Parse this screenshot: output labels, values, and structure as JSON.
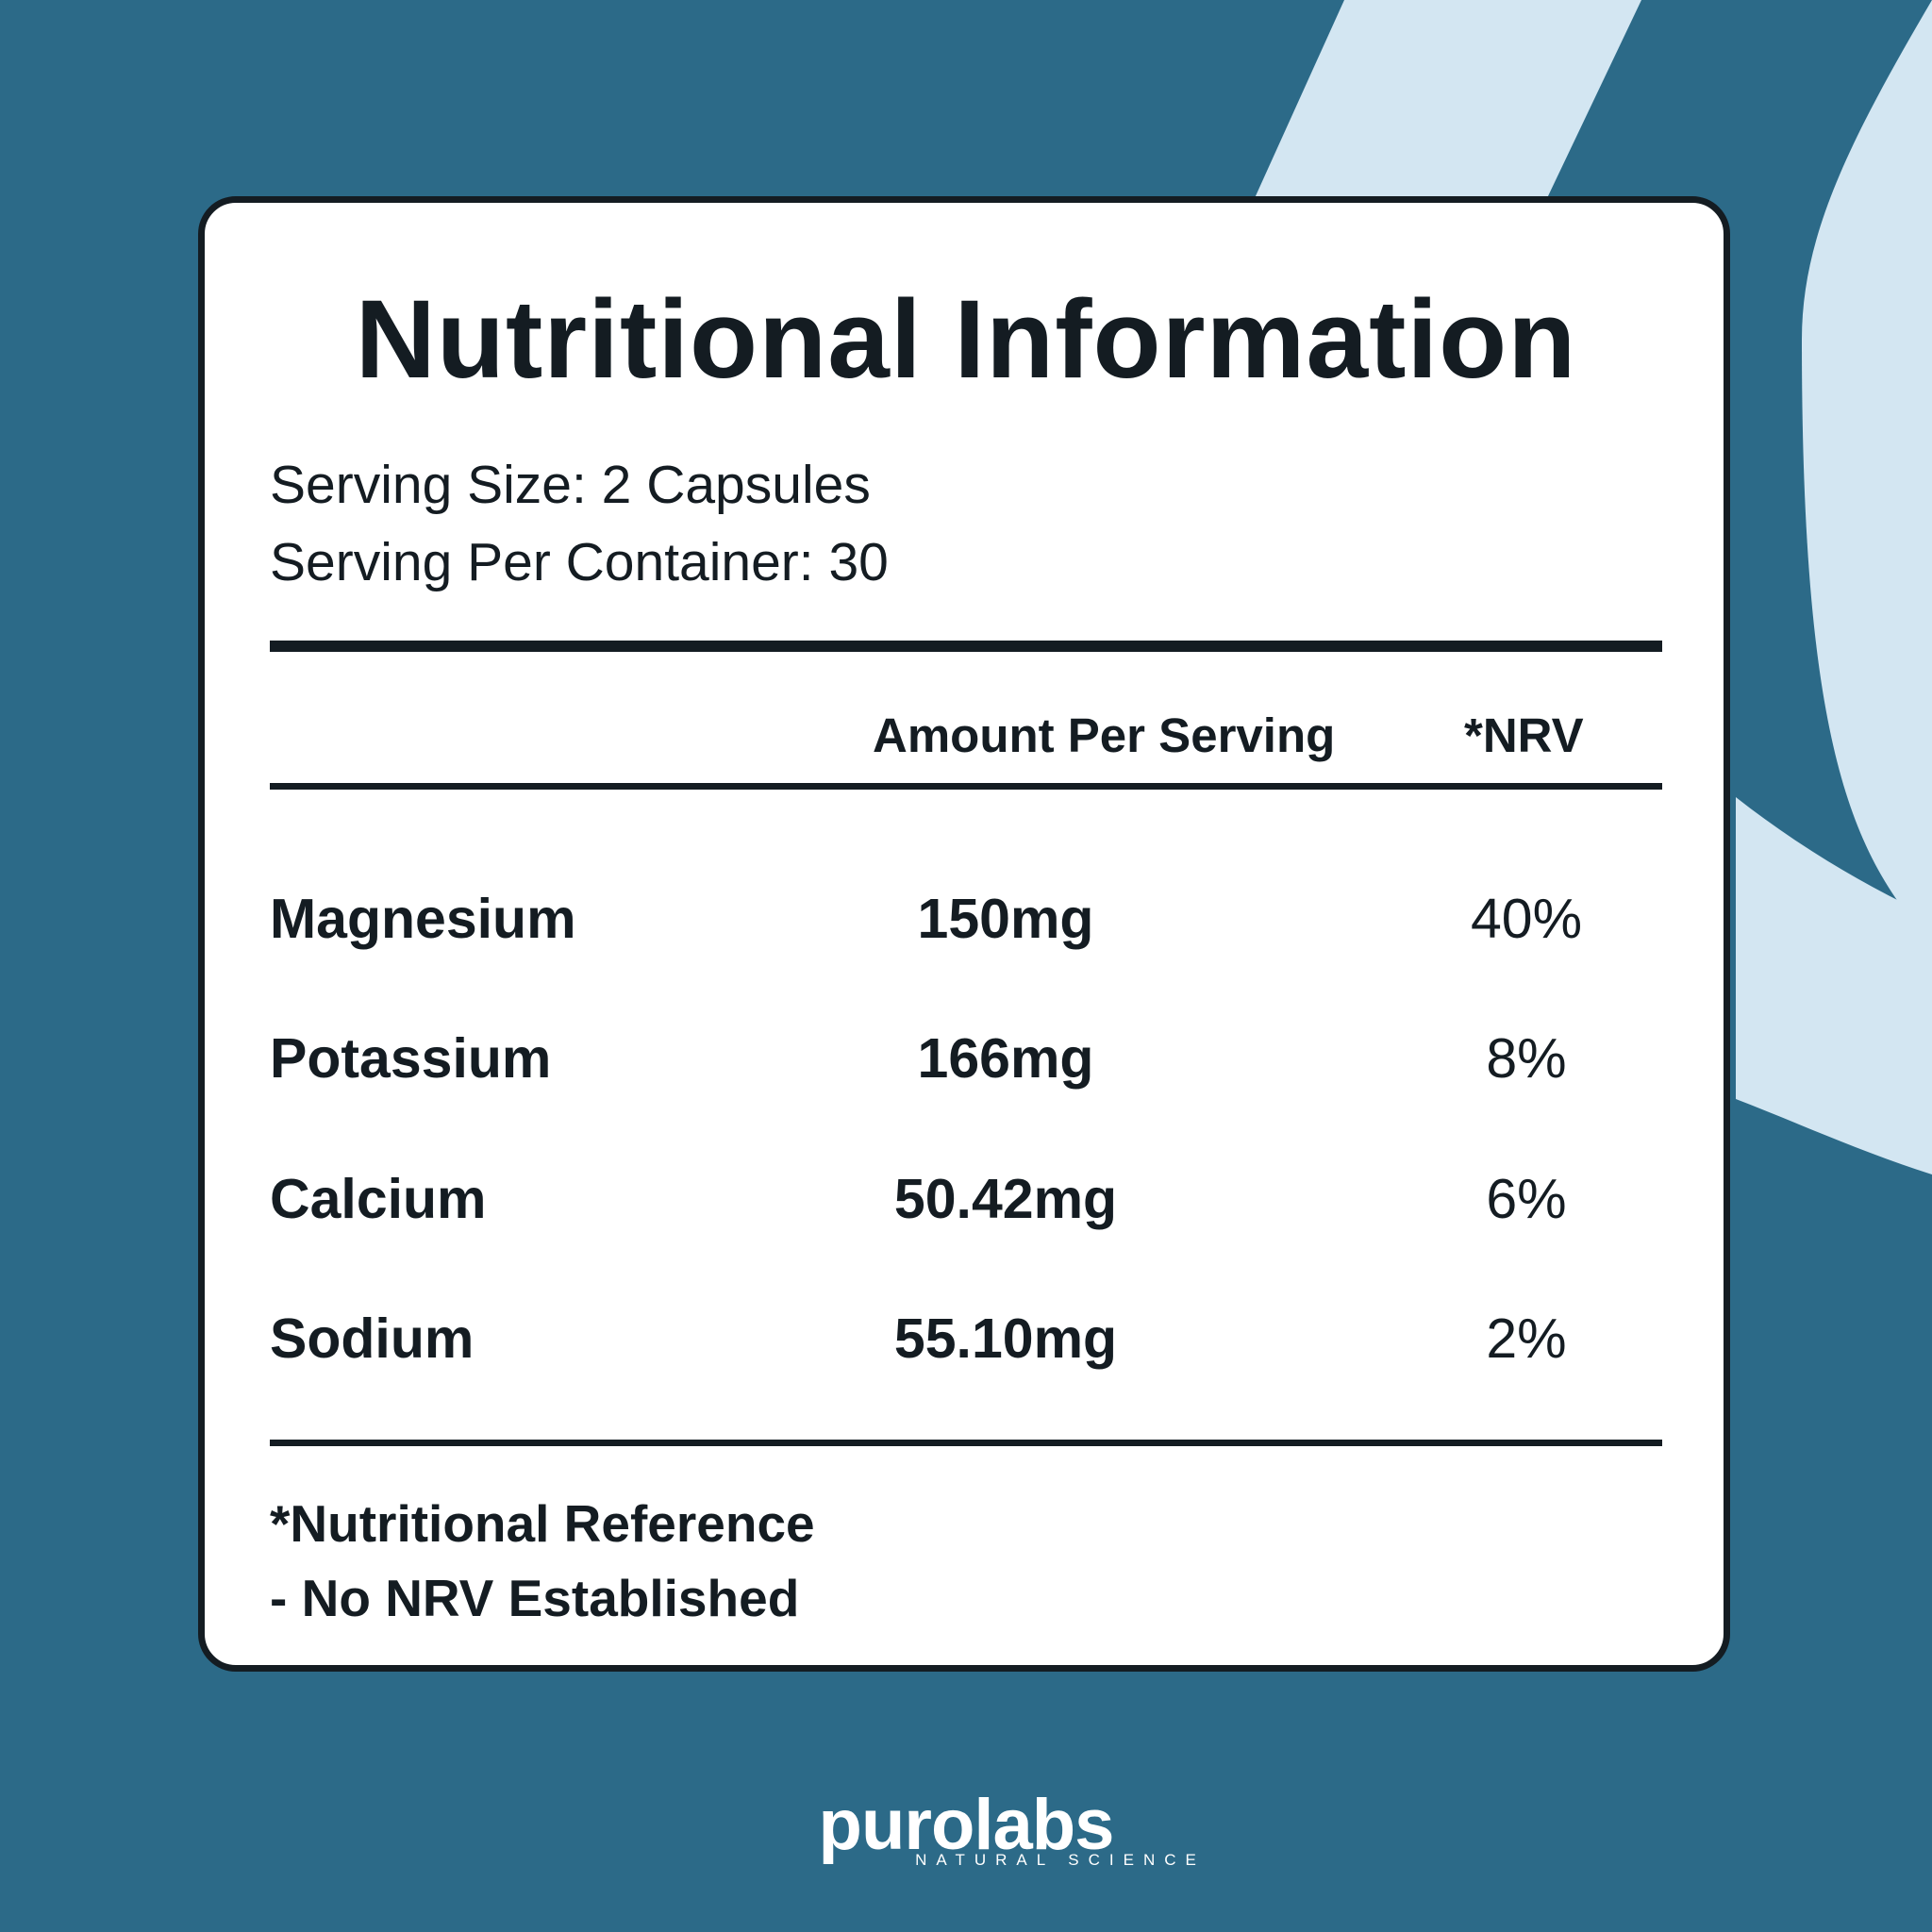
{
  "title": "Nutritional Information",
  "serving": {
    "size": "Serving Size: 2 Capsules",
    "per_container": "Serving Per Container: 30"
  },
  "table": {
    "headers": {
      "amount": "Amount Per Serving",
      "nrv": "*NRV"
    },
    "rows": [
      {
        "name": "Magnesium",
        "amount": "150mg",
        "nrv": "40%"
      },
      {
        "name": "Potassium",
        "amount": "166mg",
        "nrv": "8%"
      },
      {
        "name": "Calcium",
        "amount": "50.42mg",
        "nrv": "6%"
      },
      {
        "name": "Sodium",
        "amount": "55.10mg",
        "nrv": "2%"
      }
    ]
  },
  "footnotes": {
    "line1": "*Nutritional Reference",
    "line2": "- No NRV Established"
  },
  "brand": {
    "name": "purolabs",
    "tagline": "NATURAL SCIENCE"
  },
  "colors": {
    "background": "#2c6a88",
    "accent_light": "#d3e6f2",
    "card": "#ffffff",
    "ink": "#141c22"
  }
}
